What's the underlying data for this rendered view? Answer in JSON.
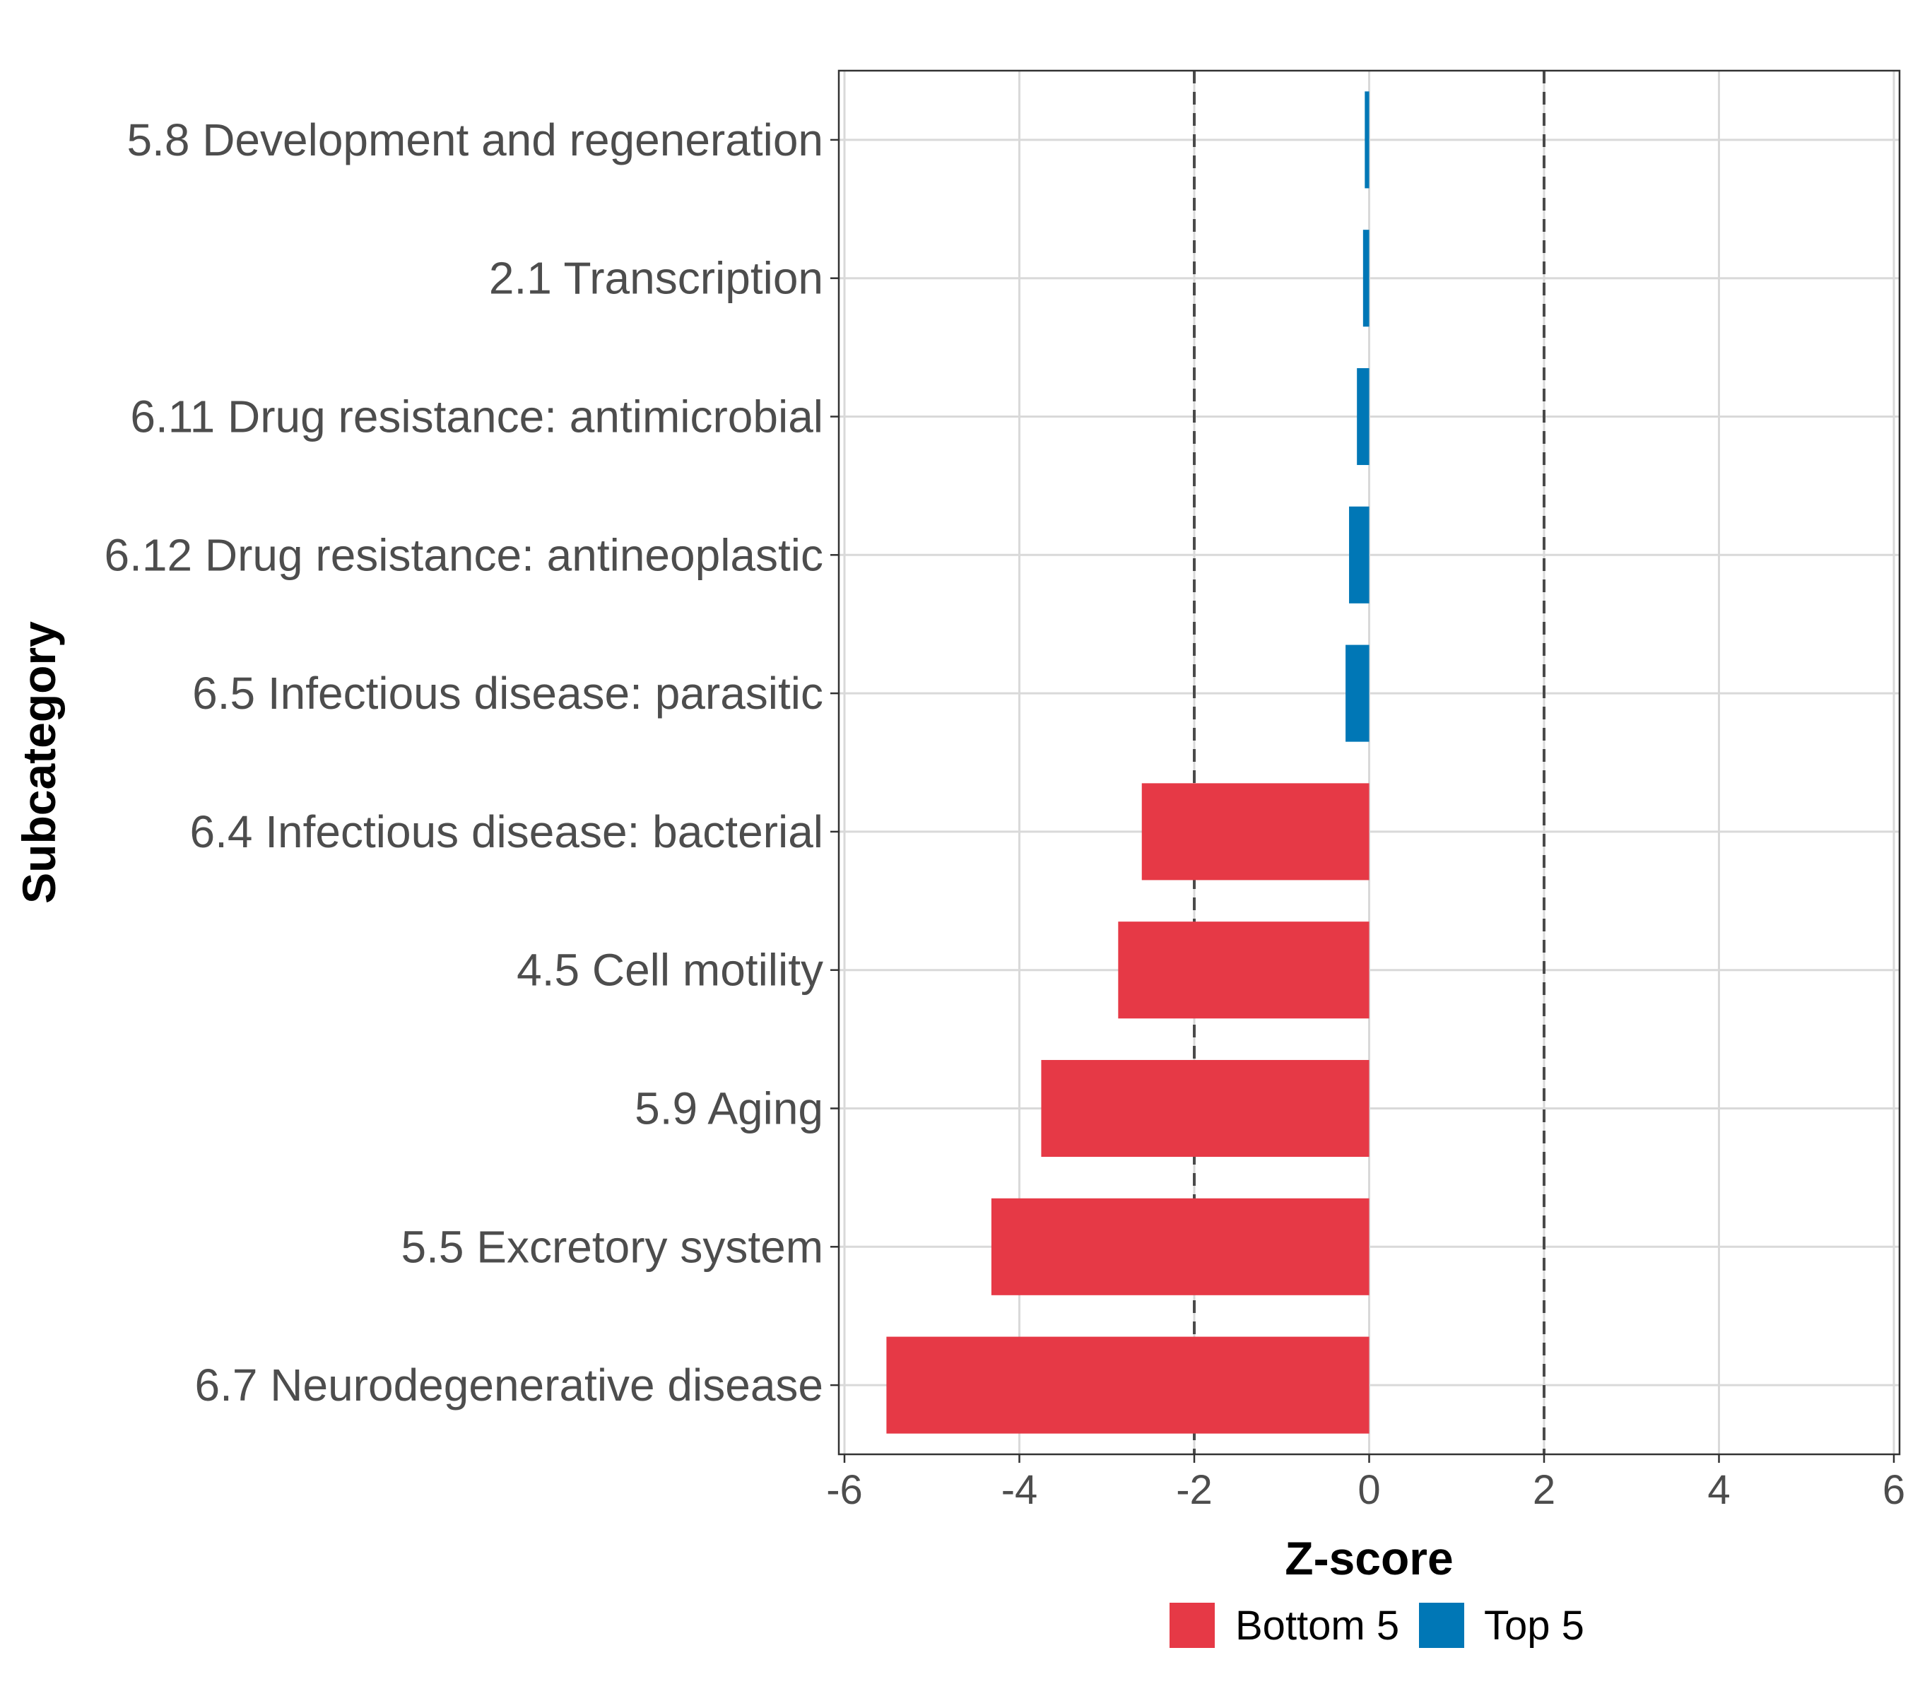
{
  "chart_data": {
    "type": "bar",
    "orientation": "horizontal",
    "title": "",
    "xlabel": "Z-score",
    "ylabel": "Subcategory",
    "xlim": [
      -6,
      6
    ],
    "xticks": [
      -6,
      -4,
      -2,
      0,
      2,
      4,
      6
    ],
    "reference_lines": [
      -2,
      2
    ],
    "grid": true,
    "legend_position": "bottom",
    "colors": {
      "Bottom 5": "#e63946",
      "Top 5": "#0077b6",
      "grid": "#d9d9d9",
      "ref_line": "#4a4a4a"
    },
    "categories": [
      "5.8 Development and regeneration",
      "2.1 Transcription",
      "6.11 Drug resistance: antimicrobial",
      "6.12 Drug resistance: antineoplastic",
      "6.5 Infectious disease: parasitic",
      "6.4 Infectious disease: bacterial",
      "4.5 Cell motility",
      "5.9 Aging",
      "5.5 Excretory system",
      "6.7 Neurodegenerative disease"
    ],
    "values": [
      -0.05,
      -0.07,
      -0.14,
      -0.23,
      -0.27,
      -2.6,
      -2.87,
      -3.75,
      -4.32,
      -5.52
    ],
    "groups": [
      "Top 5",
      "Top 5",
      "Top 5",
      "Top 5",
      "Top 5",
      "Bottom 5",
      "Bottom 5",
      "Bottom 5",
      "Bottom 5",
      "Bottom 5"
    ],
    "legend": [
      "Bottom 5",
      "Top 5"
    ]
  }
}
